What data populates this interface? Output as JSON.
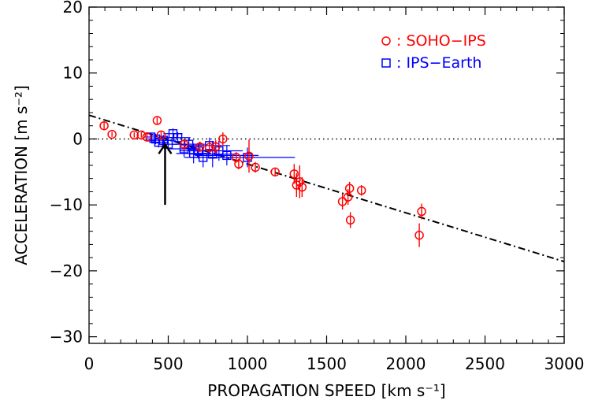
{
  "chart_data": {
    "type": "scatter",
    "xlabel": "PROPAGATION SPEED [km s⁻¹]",
    "ylabel": "ACCELERATION [m s⁻²]",
    "xlim": [
      0,
      3000
    ],
    "ylim": [
      -31,
      20
    ],
    "x_ticks": [
      0,
      500,
      1000,
      1500,
      2000,
      2500,
      3000
    ],
    "y_ticks": [
      20,
      10,
      0,
      -10,
      -20,
      -30
    ],
    "legend_position": "top-right",
    "series": [
      {
        "name": "SOHO−IPS",
        "color": "#ff0000",
        "marker": "circle",
        "points": [
          {
            "x": 95,
            "y": 2.0,
            "yerr": 0.5
          },
          {
            "x": 145,
            "y": 0.7,
            "yerr": 0.4
          },
          {
            "x": 285,
            "y": 0.6,
            "yerr": 0.4
          },
          {
            "x": 330,
            "y": 0.6,
            "yerr": 0.4
          },
          {
            "x": 365,
            "y": 0.3,
            "yerr": 0.4
          },
          {
            "x": 430,
            "y": 2.8,
            "yerr": 0.5
          },
          {
            "x": 455,
            "y": 0.6,
            "yerr": 0.5
          },
          {
            "x": 600,
            "y": -0.8,
            "yerr": 0.8
          },
          {
            "x": 700,
            "y": -1.2,
            "yerr": 0.8
          },
          {
            "x": 760,
            "y": -1.3,
            "yerr": 0.8
          },
          {
            "x": 800,
            "y": -1.2,
            "yerr": 1.0
          },
          {
            "x": 845,
            "y": 0.0,
            "yerr": 1.0
          },
          {
            "x": 930,
            "y": -2.8,
            "yerr": 0.8
          },
          {
            "x": 945,
            "y": -3.8,
            "yerr": 0.8
          },
          {
            "x": 1010,
            "y": -2.6,
            "yerr": 2.5
          },
          {
            "x": 1050,
            "y": -4.3,
            "yerr": 0.8
          },
          {
            "x": 1175,
            "y": -5.0,
            "yerr": 0.5
          },
          {
            "x": 1295,
            "y": -5.3,
            "yerr": 1.5
          },
          {
            "x": 1310,
            "y": -7.0,
            "yerr": 1.8
          },
          {
            "x": 1330,
            "y": -6.5,
            "yerr": 2.5
          },
          {
            "x": 1345,
            "y": -7.3,
            "yerr": 1.5
          },
          {
            "x": 1600,
            "y": -9.5,
            "yerr": 1.2
          },
          {
            "x": 1635,
            "y": -8.8,
            "yerr": 1.2
          },
          {
            "x": 1645,
            "y": -7.5,
            "yerr": 1.0
          },
          {
            "x": 1650,
            "y": -12.3,
            "yerr": 1.2
          },
          {
            "x": 1720,
            "y": -7.8,
            "yerr": 0.8
          },
          {
            "x": 2085,
            "y": -14.6,
            "yerr": 1.8
          },
          {
            "x": 2100,
            "y": -11.0,
            "yerr": 1.2
          }
        ]
      },
      {
        "name": "IPS−Earth",
        "color": "#0000ff",
        "marker": "square",
        "points": [
          {
            "x": 390,
            "y": 0.3,
            "xerr": 40,
            "yerr": 0.6
          },
          {
            "x": 420,
            "y": 0.0,
            "xerr": 50,
            "yerr": 0.8
          },
          {
            "x": 440,
            "y": -0.5,
            "xerr": 60,
            "yerr": 0.8
          },
          {
            "x": 470,
            "y": -0.2,
            "xerr": 80,
            "yerr": 0.8
          },
          {
            "x": 500,
            "y": -0.8,
            "xerr": 60,
            "yerr": 1.0
          },
          {
            "x": 530,
            "y": 0.8,
            "xerr": 60,
            "yerr": 0.8
          },
          {
            "x": 560,
            "y": 0.2,
            "xerr": 80,
            "yerr": 0.8
          },
          {
            "x": 600,
            "y": -1.5,
            "xerr": 90,
            "yerr": 1.2
          },
          {
            "x": 630,
            "y": -0.8,
            "xerr": 100,
            "yerr": 1.0
          },
          {
            "x": 660,
            "y": -2.2,
            "xerr": 110,
            "yerr": 1.5
          },
          {
            "x": 690,
            "y": -1.8,
            "xerr": 120,
            "yerr": 1.2
          },
          {
            "x": 720,
            "y": -2.8,
            "xerr": 120,
            "yerr": 1.5
          },
          {
            "x": 760,
            "y": -1.0,
            "xerr": 130,
            "yerr": 1.2
          },
          {
            "x": 780,
            "y": -2.3,
            "xerr": 150,
            "yerr": 2.0
          },
          {
            "x": 820,
            "y": -1.8,
            "xerr": 150,
            "yerr": 1.5
          },
          {
            "x": 870,
            "y": -2.5,
            "xerr": 200,
            "yerr": 1.5
          },
          {
            "x": 1000,
            "y": -2.8,
            "xerr": 300,
            "yerr": 1.5
          }
        ]
      }
    ],
    "fit_line": {
      "style": "dash-dot",
      "color": "#000000",
      "x": [
        0,
        3000
      ],
      "y": [
        3.6,
        -18.6
      ]
    },
    "zero_line": {
      "style": "dotted",
      "y": 0
    },
    "arrow": {
      "x": 480,
      "from_y": -10,
      "to_y": -0.8
    }
  }
}
